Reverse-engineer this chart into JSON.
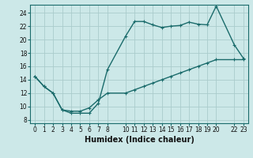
{
  "xlabel": "Humidex (Indice chaleur)",
  "ylabel": "",
  "background_color": "#cce8e8",
  "grid_color": "#aacccc",
  "line_color": "#1a6b6b",
  "xlim": [
    -0.5,
    23.5
  ],
  "ylim": [
    7.5,
    25.2
  ],
  "xticks": [
    0,
    1,
    2,
    3,
    4,
    5,
    6,
    7,
    8,
    10,
    11,
    12,
    13,
    14,
    15,
    16,
    17,
    18,
    19,
    20,
    22,
    23
  ],
  "yticks": [
    8,
    10,
    12,
    14,
    16,
    18,
    20,
    22,
    24
  ],
  "line1_x": [
    0,
    1,
    2,
    3,
    4,
    5,
    6,
    7,
    8,
    10,
    11,
    12,
    13,
    14,
    15,
    16,
    17,
    18,
    19,
    20,
    22,
    23
  ],
  "line1_y": [
    14.5,
    13,
    12,
    9.5,
    9.0,
    9.0,
    9.0,
    10.5,
    15.5,
    20.5,
    22.7,
    22.7,
    22.2,
    21.8,
    22.0,
    22.1,
    22.6,
    22.3,
    22.2,
    25.0,
    19.2,
    17.2
  ],
  "line2_x": [
    0,
    1,
    2,
    3,
    4,
    5,
    6,
    7,
    8,
    10,
    11,
    12,
    13,
    14,
    15,
    16,
    17,
    18,
    19,
    20,
    22,
    23
  ],
  "line2_y": [
    14.5,
    13,
    12,
    9.5,
    9.3,
    9.3,
    9.8,
    11.0,
    12.0,
    12.0,
    12.5,
    13.0,
    13.5,
    14.0,
    14.5,
    15.0,
    15.5,
    16.0,
    16.5,
    17.0,
    17.0,
    17.0
  ],
  "marker": "+",
  "markersize": 3,
  "markeredgewidth": 0.8,
  "linewidth": 1.0,
  "tick_fontsize": 5.5,
  "xlabel_fontsize": 7
}
